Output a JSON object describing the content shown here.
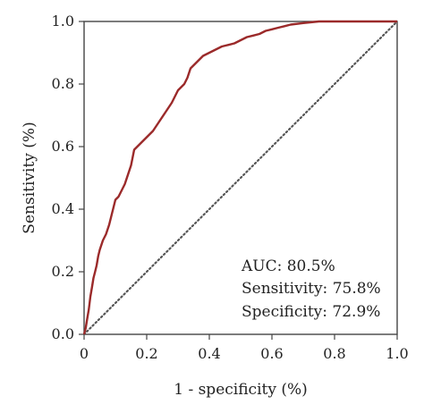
{
  "chart_data": {
    "type": "line",
    "title": "",
    "xlabel": "1 - specificity (%)",
    "ylabel": "Sensitivity (%)",
    "xlim": [
      0,
      1
    ],
    "ylim": [
      0,
      1
    ],
    "x_ticks": [
      "0",
      "0.2",
      "0.4",
      "0.6",
      "0.8",
      "1.0"
    ],
    "y_ticks": [
      "0.0",
      "0.2",
      "0.4",
      "0.6",
      "0.8",
      "1.0"
    ],
    "grid": false,
    "annotations": [
      "AUC: 80.5%",
      "Sensitivity: 75.8%",
      "Specificity: 72.9%"
    ],
    "series": [
      {
        "style": "solid",
        "color": "#9b2a2a",
        "x": [
          0,
          0.005,
          0.01,
          0.015,
          0.02,
          0.025,
          0.03,
          0.035,
          0.04,
          0.045,
          0.05,
          0.06,
          0.07,
          0.08,
          0.09,
          0.1,
          0.11,
          0.12,
          0.13,
          0.14,
          0.15,
          0.16,
          0.17,
          0.18,
          0.19,
          0.2,
          0.22,
          0.24,
          0.26,
          0.28,
          0.3,
          0.32,
          0.33,
          0.34,
          0.36,
          0.38,
          0.4,
          0.42,
          0.44,
          0.46,
          0.48,
          0.5,
          0.52,
          0.54,
          0.56,
          0.58,
          0.6,
          0.62,
          0.64,
          0.66,
          0.7,
          0.75,
          0.8,
          0.85,
          0.9,
          0.95,
          1.0
        ],
        "y": [
          0,
          0.02,
          0.05,
          0.08,
          0.12,
          0.15,
          0.18,
          0.2,
          0.22,
          0.25,
          0.27,
          0.3,
          0.32,
          0.35,
          0.39,
          0.43,
          0.44,
          0.46,
          0.48,
          0.51,
          0.54,
          0.59,
          0.6,
          0.61,
          0.62,
          0.63,
          0.65,
          0.68,
          0.71,
          0.74,
          0.78,
          0.8,
          0.82,
          0.85,
          0.87,
          0.89,
          0.9,
          0.91,
          0.92,
          0.925,
          0.93,
          0.94,
          0.95,
          0.955,
          0.96,
          0.97,
          0.975,
          0.98,
          0.985,
          0.99,
          0.995,
          1.0,
          1.0,
          1.0,
          1.0,
          1.0,
          1.0
        ]
      },
      {
        "style": "dotted",
        "color": "#555555",
        "x": [
          0,
          1
        ],
        "y": [
          0,
          1
        ]
      }
    ]
  }
}
